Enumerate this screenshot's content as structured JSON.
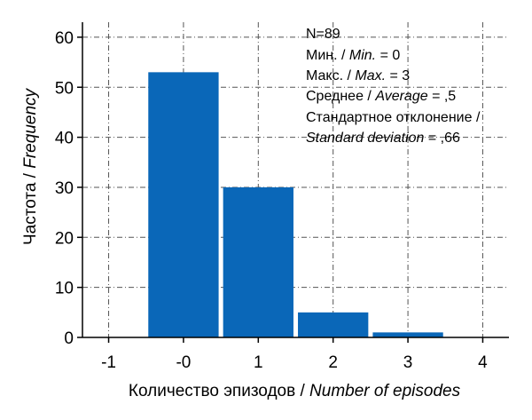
{
  "chart_data": {
    "type": "bar",
    "x": [
      0,
      1,
      2,
      3
    ],
    "categories": [
      "-0",
      "1",
      "2",
      "3"
    ],
    "values": [
      53,
      30,
      5,
      1
    ],
    "xlabel_ru": "Количество эпизодов / ",
    "xlabel_en": "Number of episodes",
    "ylabel_ru": "Частота / ",
    "ylabel_en": "Frequency",
    "xlim": [
      -1.35,
      4.35
    ],
    "ylim": [
      0,
      63
    ],
    "x_ticks": [
      -1,
      0,
      1,
      2,
      3,
      4
    ],
    "x_tick_labels": [
      "-1",
      "-0",
      "1",
      "2",
      "3",
      "4"
    ],
    "y_ticks": [
      0,
      10,
      20,
      30,
      40,
      50,
      60
    ],
    "y_tick_labels": [
      "0",
      "10",
      "20",
      "30",
      "40",
      "50",
      "60"
    ],
    "grid": true,
    "bar_color": "#0a67b8",
    "stats": {
      "n_line": "N=89",
      "min_ru": "Мин. / ",
      "min_en": "Min.",
      "min_val": " = 0",
      "max_ru": "Макс. / ",
      "max_en": "Max.",
      "max_val": " = 3",
      "avg_ru": "Среднее / ",
      "avg_en": "Average",
      "avg_val": " = ,5",
      "sd_ru": "Стандартное отклонение /",
      "sd_en": "Standard deviation",
      "sd_val": " = ,66"
    }
  }
}
